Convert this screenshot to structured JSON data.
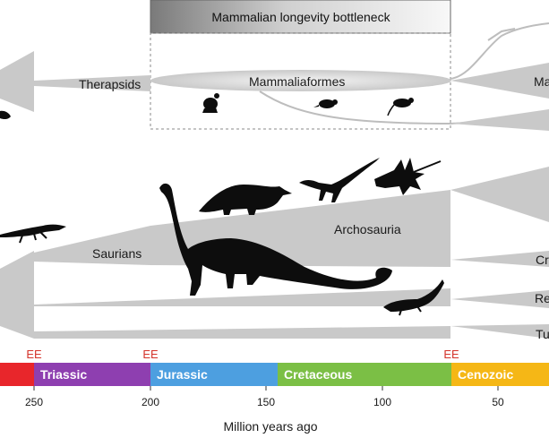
{
  "banner": {
    "text": "Mammalian longevity bottleneck"
  },
  "clades": {
    "mammaliaformes": "Mammaliaformes",
    "therapsids": "Therapsids",
    "ma_cut": "Ma",
    "saurians": "Saurians",
    "archosauria": "Archosauria",
    "cr_cut": "Cr",
    "re_cut": "Re",
    "tu_cut": "Tu"
  },
  "extinction_events": {
    "label": "EE",
    "ma": [
      252,
      201,
      66
    ]
  },
  "timescale": {
    "periods": [
      {
        "name": "",
        "color": "#e8262b"
      },
      {
        "name": "Triassic",
        "color": "#8e3fb0"
      },
      {
        "name": "Jurassic",
        "color": "#4d9fe0"
      },
      {
        "name": "Cretaceous",
        "color": "#7bbf45"
      },
      {
        "name": "Cenozoic",
        "color": "#f5b716"
      }
    ],
    "ticks": [
      "250",
      "200",
      "150",
      "100",
      "50"
    ],
    "axis_title": "Million years ago"
  },
  "icons": [
    "mammaliaform-silhouette",
    "theropod-silhouette",
    "triceratops-silhouette",
    "sauropod-silhouette",
    "pterosaur-silhouette",
    "crocodylomorph-silhouette",
    "marine-reptile-silhouette"
  ]
}
